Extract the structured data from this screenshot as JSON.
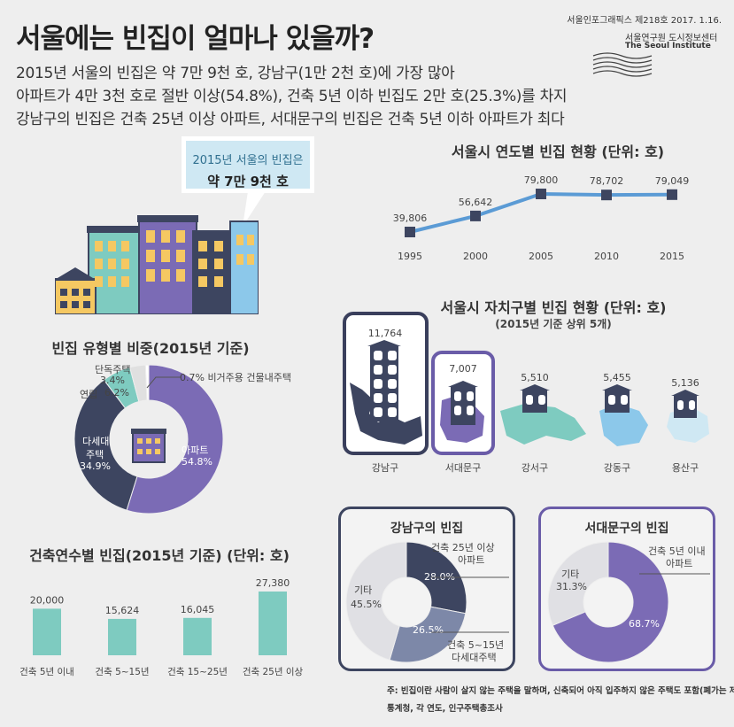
{
  "header": {
    "title": "서울에는 빈집이 얼마나 있을까?",
    "issue": "서울인포그래픽스 제218호 2017. 1.16.",
    "org": "서울연구원 도시정보센터",
    "org_en": "The Seoul Institute",
    "lines": [
      "2015년 서울의 빈집은 약 7만 9천 호, 강남구(1만 2천 호)에 가장 많아",
      "아파트가 4만 3천 호로 절반 이상(54.8%), 건축 5년 이하 빈집도 2만 호(25.3%)를 차지",
      "강남구의 빈집은 건축 25년 이상 아파트, 서대문구의 빈집은 건축 5년 이하 아파트가 최다"
    ]
  },
  "callout": {
    "line1": "2015년 서울의 빈집은",
    "line2": "약 7만 9천 호"
  },
  "trend": {
    "title": "서울시 연도별 빈집 현황 (단위: 호)",
    "color": "#5b9bd5",
    "point_color": "#3d4560"
  },
  "district": {
    "title": "서울시 자치구별 빈집 현황 (단위: 호)",
    "subtitle": "(2015년 기준 상위 5개)",
    "items": [
      {
        "name": "강남구",
        "value": "11,764"
      },
      {
        "name": "서대문구",
        "value": "7,007"
      },
      {
        "name": "강서구",
        "value": "5,510"
      },
      {
        "name": "강동구",
        "value": "5,455"
      },
      {
        "name": "용산구",
        "value": "5,136"
      }
    ]
  },
  "type_share": {
    "title": "빈집 유형별 비중(2015년 기준)",
    "labels": {
      "apt": "아파트",
      "apt_pct": "54.8%",
      "multi1": "다세대",
      "multi2": "주택",
      "multi_pct": "34.9%",
      "row": "연립",
      "row_pct": "6.2%",
      "single": "단독주택",
      "single_pct": "3.4%",
      "nonres": "0.7% 비거주용 건물내주택"
    }
  },
  "age": {
    "title": "건축연수별 빈집(2015년 기준) (단위: 호)",
    "bar_color": "#7ecbc0"
  },
  "gangnam": {
    "title": "강남구의 빈집",
    "a1": "건축 25년 이상",
    "a2": "아파트",
    "b1": "건축 5~15년",
    "b2": "다세대주택",
    "other": "기타",
    "p_apt": "28.0%",
    "p_multi": "26.5%",
    "p_other": "45.5%"
  },
  "seodaemun": {
    "title": "서대문구의 빈집",
    "a1": "건축 5년 이내",
    "a2": "아파트",
    "other": "기타",
    "p_apt": "68.7%",
    "p_other": "31.3%"
  },
  "notes": {
    "n1": "주: 빈집이란 사람이 살지 않는 주택을 말하며, 신축되어 아직 입주하지 않은 주택도 포함(폐가는 제외)",
    "n2": "통계청, 각 연도, 인구주택총조사"
  },
  "chart_data": [
    {
      "type": "line",
      "title": "서울시 연도별 빈집 현황 (단위: 호)",
      "x": [
        "1995",
        "2000",
        "2005",
        "2010",
        "2015"
      ],
      "series": [
        {
          "values": [
            39806,
            56642,
            79800,
            78702,
            79049
          ]
        }
      ],
      "value_labels": [
        "39,806",
        "56,642",
        "79,800",
        "78,702",
        "79,049"
      ]
    },
    {
      "type": "pie",
      "title": "빈집 유형별 비중(2015년 기준)",
      "categories": [
        "아파트",
        "다세대주택",
        "연립",
        "단독주택",
        "비거주용 건물내주택"
      ],
      "values": [
        54.8,
        34.9,
        6.2,
        3.4,
        0.7
      ],
      "colors": [
        "#7b6bb5",
        "#3d4560",
        "#7ecbc0",
        "#e0e0e0",
        "#ffffff"
      ]
    },
    {
      "type": "bar",
      "title": "건축연수별 빈집(2015년 기준) (단위: 호)",
      "categories": [
        "건축 5년 이내",
        "건축 5~15년",
        "건축 15~25년",
        "건축 25년 이상"
      ],
      "values": [
        20000,
        15624,
        16045,
        27380
      ],
      "value_labels": [
        "20,000",
        "15,624",
        "16,045",
        "27,380"
      ]
    },
    {
      "type": "pie",
      "title": "강남구의 빈집",
      "categories": [
        "건축 25년 이상 아파트",
        "건축 5~15년 다세대주택",
        "기타"
      ],
      "values": [
        28.0,
        26.5,
        45.5
      ],
      "colors": [
        "#3d4560",
        "#7d88a8",
        "#e0e0e4"
      ]
    },
    {
      "type": "pie",
      "title": "서대문구의 빈집",
      "categories": [
        "건축 5년 이내 아파트",
        "기타"
      ],
      "values": [
        68.7,
        31.3
      ],
      "colors": [
        "#7b6bb5",
        "#e0e0e4"
      ]
    }
  ]
}
